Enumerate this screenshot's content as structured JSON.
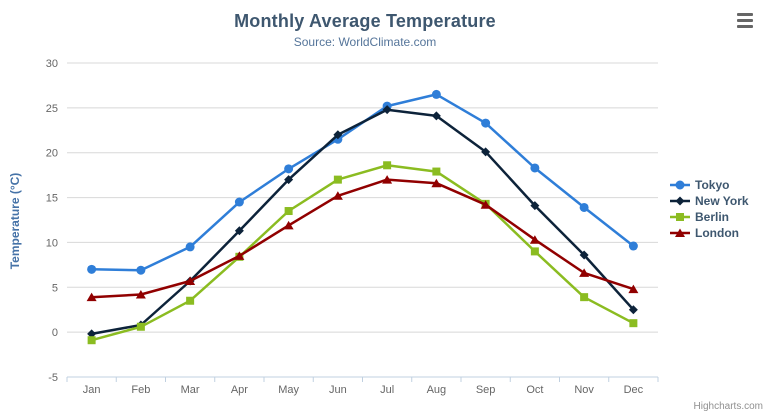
{
  "chart_data": {
    "type": "line",
    "title": "Monthly Average Temperature",
    "subtitle": "Source: WorldClimate.com",
    "categories": [
      "Jan",
      "Feb",
      "Mar",
      "Apr",
      "May",
      "Jun",
      "Jul",
      "Aug",
      "Sep",
      "Oct",
      "Nov",
      "Dec"
    ],
    "series": [
      {
        "name": "Tokyo",
        "color": "#2F7ED8",
        "marker": "circle",
        "values": [
          7.0,
          6.9,
          9.5,
          14.5,
          18.2,
          21.5,
          25.2,
          26.5,
          23.3,
          18.3,
          13.9,
          9.6
        ]
      },
      {
        "name": "New York",
        "color": "#0D233A",
        "marker": "diamond",
        "values": [
          -0.2,
          0.8,
          5.7,
          11.3,
          17.0,
          22.0,
          24.8,
          24.1,
          20.1,
          14.1,
          8.6,
          2.5
        ]
      },
      {
        "name": "Berlin",
        "color": "#8BBC21",
        "marker": "square",
        "values": [
          -0.9,
          0.6,
          3.5,
          8.4,
          13.5,
          17.0,
          18.6,
          17.9,
          14.3,
          9.0,
          3.9,
          1.0
        ]
      },
      {
        "name": "London",
        "color": "#910000",
        "marker": "triangle",
        "values": [
          3.9,
          4.2,
          5.7,
          8.5,
          11.9,
          15.2,
          17.0,
          16.6,
          14.2,
          10.3,
          6.6,
          4.8
        ]
      }
    ],
    "xlabel": "",
    "ylabel": "Temperature (°C)",
    "yAxis": {
      "min": -5,
      "max": 30,
      "tick_interval": 5,
      "tick_labels": [
        "-5",
        "0",
        "5",
        "10",
        "15",
        "20",
        "25",
        "30"
      ]
    },
    "grid": "horizontal-only",
    "legend_position": "right-middle",
    "credits": "Highcharts.com"
  },
  "colors": {
    "title": "#3E576F",
    "subtitle": "#55759A",
    "yaxis_title": "#4572A7",
    "grid_line": "#D8D8D8",
    "axis_line": "#C0D0E0",
    "tick_label": "#666666",
    "legend_text": "#3E576F",
    "export_icon": "#666666",
    "credits_text": "#909090",
    "background": "#FFFFFF"
  },
  "icons": {
    "export_menu": "hamburger-menu"
  }
}
